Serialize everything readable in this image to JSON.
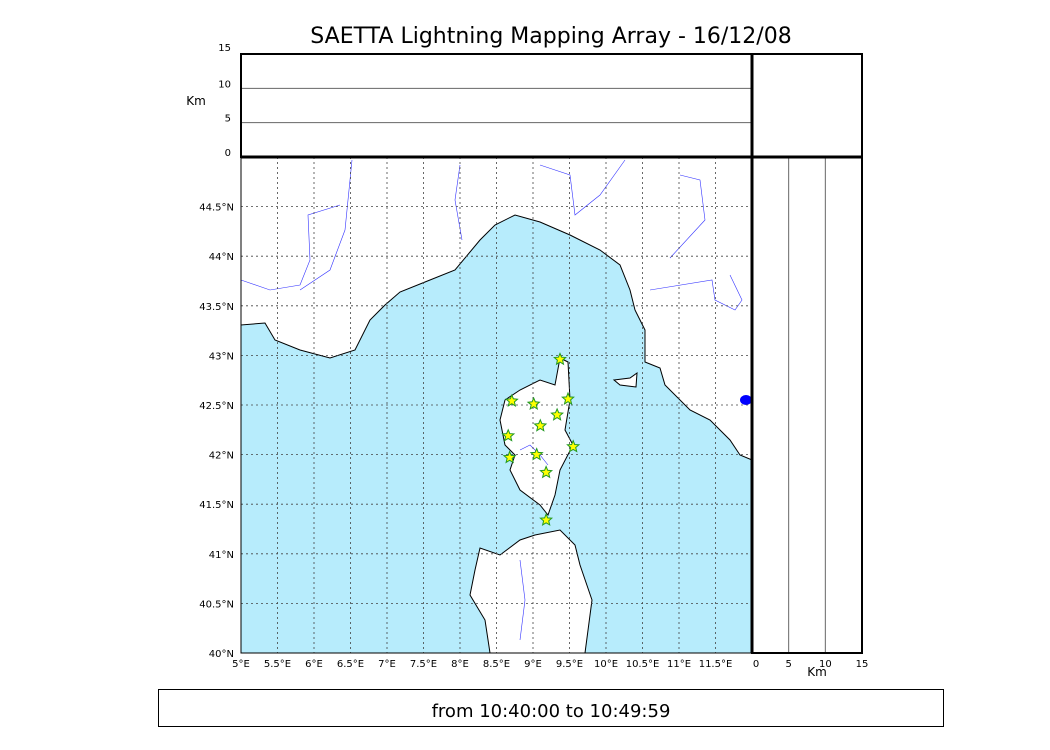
{
  "title": "SAETTA Lightning Mapping Array - 16/12/08",
  "footer": "from 10:40:00 to 10:49:59",
  "colors": {
    "sea": "#b7ecfc",
    "land": "#ffffff",
    "river": "#3333ff",
    "star_fill": "#ffff00",
    "star_stroke": "#229922"
  },
  "chart_data": {
    "type": "scatter",
    "map": {
      "lon_range": [
        5,
        12
      ],
      "lat_range": [
        40,
        45
      ],
      "grid": true,
      "lon_ticks": [
        "5°E",
        "5.5°E",
        "6°E",
        "6.5°E",
        "7°E",
        "7.5°E",
        "8°E",
        "8.5°E",
        "9°E",
        "9.5°E",
        "10°E",
        "10.5°E",
        "11°E",
        "11.5°E"
      ],
      "lat_ticks": [
        "40°N",
        "40.5°N",
        "41°N",
        "41.5°N",
        "42°N",
        "42.5°N",
        "43°N",
        "43.5°N",
        "44°N",
        "44.5°N"
      ]
    },
    "altitude_panel": {
      "ylabel": "Km",
      "range": [
        0,
        15
      ],
      "ticks": [
        "0",
        "5",
        "10",
        "15"
      ]
    },
    "side_panel": {
      "xlabel": "Km",
      "range": [
        0,
        15
      ],
      "ticks": [
        "0",
        "5",
        "10",
        "15"
      ]
    },
    "marker": "star",
    "points": [
      {
        "lon": 9.37,
        "lat": 42.96
      },
      {
        "lon": 8.71,
        "lat": 42.54
      },
      {
        "lon": 9.01,
        "lat": 42.51
      },
      {
        "lon": 9.48,
        "lat": 42.56
      },
      {
        "lon": 9.33,
        "lat": 42.4
      },
      {
        "lon": 9.1,
        "lat": 42.29
      },
      {
        "lon": 8.66,
        "lat": 42.19
      },
      {
        "lon": 9.55,
        "lat": 42.08
      },
      {
        "lon": 9.05,
        "lat": 42.0
      },
      {
        "lon": 8.68,
        "lat": 41.97
      },
      {
        "lon": 9.18,
        "lat": 41.82
      },
      {
        "lon": 9.18,
        "lat": 41.34
      }
    ]
  }
}
